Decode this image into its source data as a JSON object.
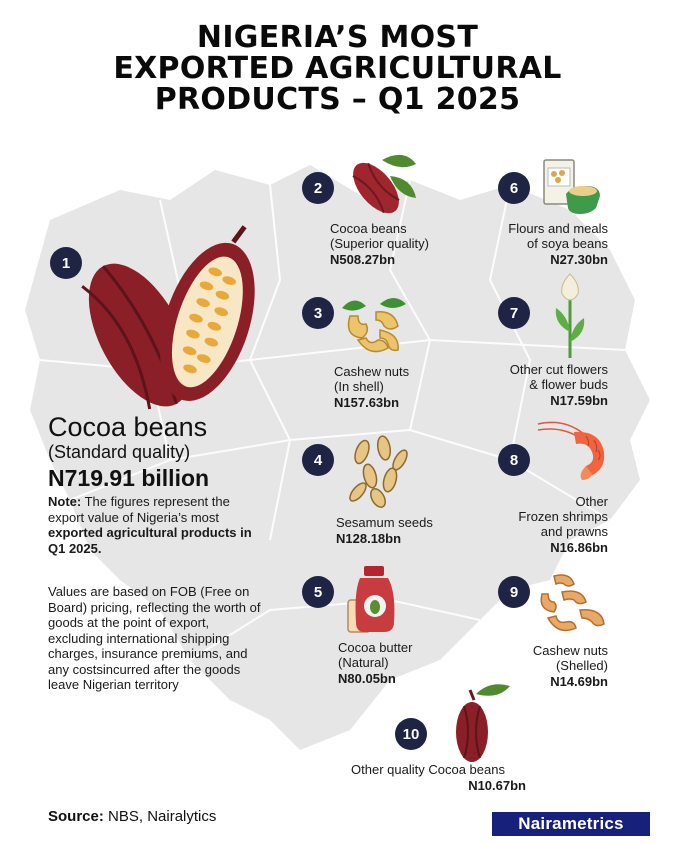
{
  "title": {
    "line1": "NIGERIA’S MOST",
    "line2": "EXPORTED AGRICULTURAL",
    "line3": "PRODUCTS – Q1 2025"
  },
  "hero": {
    "rank": "1",
    "name": "Cocoa beans",
    "qualifier": "(Standard quality)",
    "value": "N719.91 billion",
    "icon": "cocoa-pod-icon"
  },
  "note": {
    "label": "Note:",
    "text_1": " The figures represent the export value of Nigeria’s most ",
    "bold_1": "exported agricultural products in Q1 2025.",
    "paragraph_2": "Values are based on FOB (Free on Board) pricing, reflecting the worth of goods at the point of export, excluding international shipping charges, insurance premiums, and any costsincurred after the goods leave Nigerian territory"
  },
  "products": [
    {
      "rank": "2",
      "line1": "Cocoa beans",
      "line2": "(Superior quality)",
      "value": "N508.27bn",
      "icon": "cocoa-pod-icon"
    },
    {
      "rank": "3",
      "line1": "Cashew nuts",
      "line2": "(In shell)",
      "value": "N157.63bn",
      "icon": "cashew-icon"
    },
    {
      "rank": "4",
      "line1": "Sesamum seeds",
      "value": "N128.18bn",
      "icon": "sesame-seeds-icon"
    },
    {
      "rank": "5",
      "line1": "Cocoa butter",
      "line2": "(Natural)",
      "value": "N80.05bn",
      "icon": "cocoa-butter-jar-icon"
    },
    {
      "rank": "6",
      "line1": "Flours and meals",
      "line2": "of soya beans",
      "value": "N27.30bn",
      "icon": "soya-flour-icon"
    },
    {
      "rank": "7",
      "line1": "Other cut flowers",
      "line2": "& flower buds",
      "value": "N17.59bn",
      "icon": "flower-icon"
    },
    {
      "rank": "8",
      "line1": "Other",
      "line2": "Frozen shrimps",
      "line3": "and prawns",
      "value": "N16.86bn",
      "icon": "shrimp-icon"
    },
    {
      "rank": "9",
      "line1": "Cashew nuts",
      "line2": "(Shelled)",
      "value": "N14.69bn",
      "icon": "shelled-cashew-icon"
    },
    {
      "rank": "10",
      "line1": "Other quality Cocoa beans",
      "value": "N10.67bn",
      "icon": "cocoa-pod-icon"
    }
  ],
  "source": {
    "label": "Source:",
    "text": " NBS, Nairalytics"
  },
  "brand": "Nairametrics",
  "colors": {
    "badge": "#1f2344",
    "map": "#e6e6e6",
    "cocoa": "#8a1f28",
    "brand": "#17207a"
  }
}
